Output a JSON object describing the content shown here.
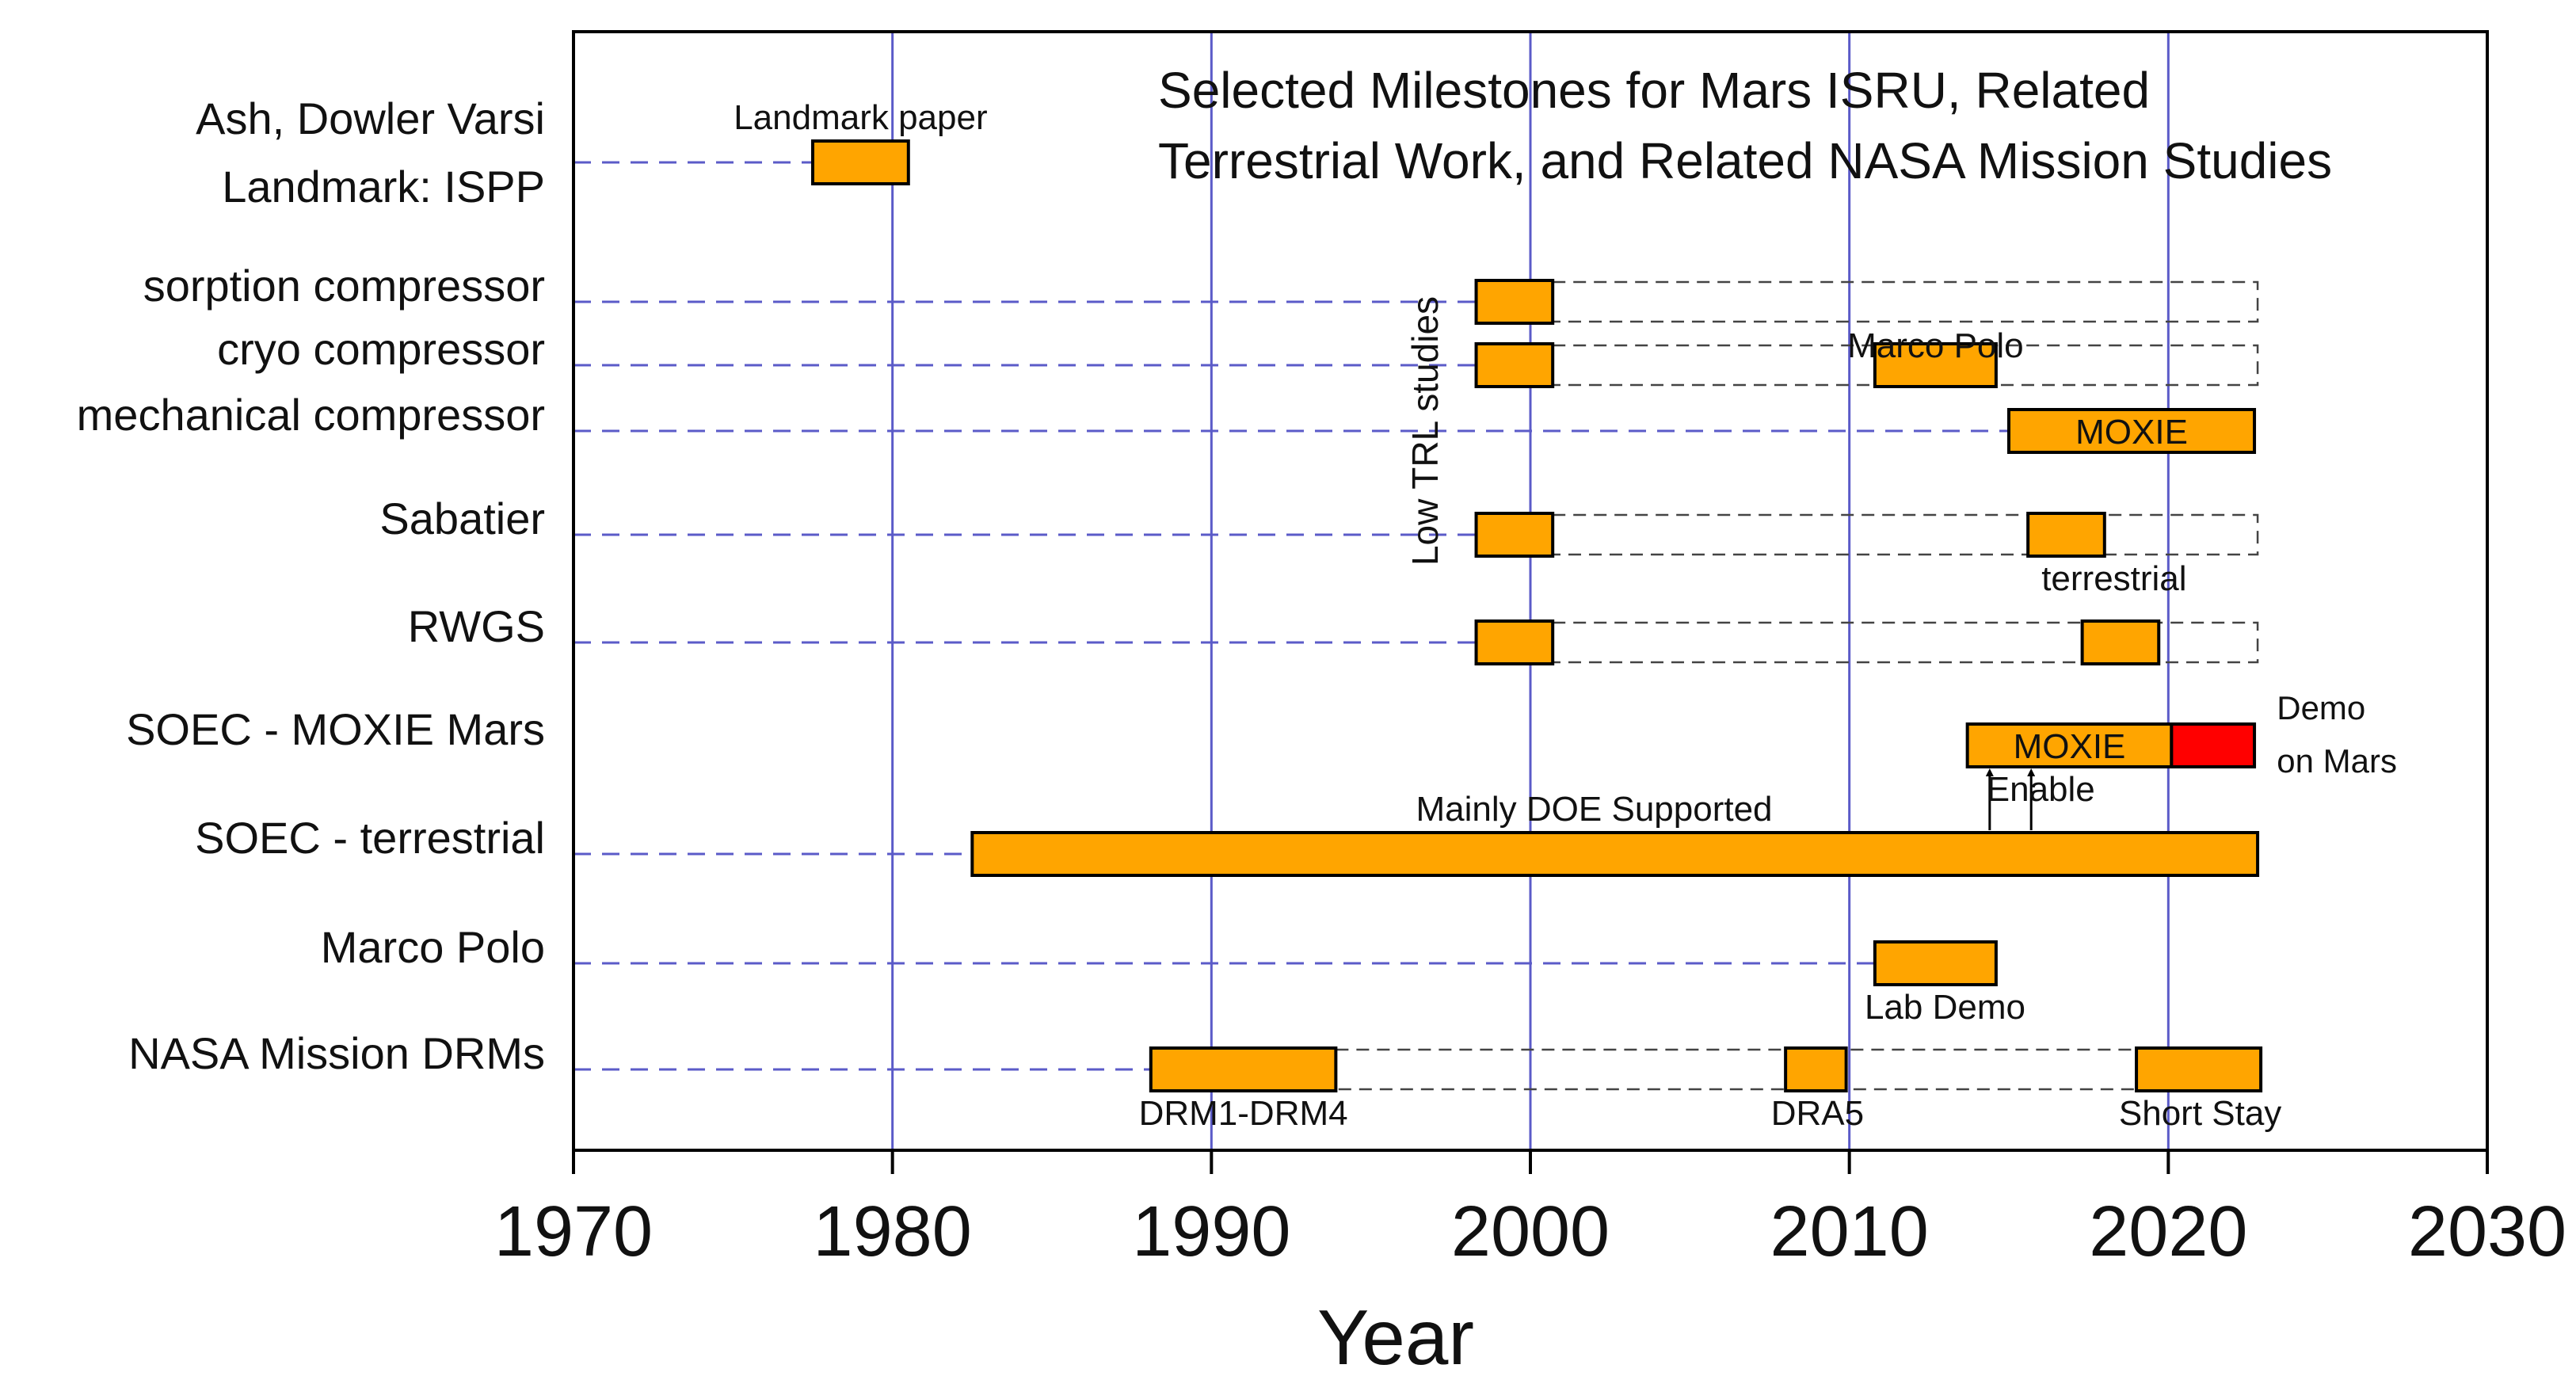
{
  "chart_data": {
    "type": "timeline",
    "title_lines": [
      "Selected Milestones for Mars ISRU, Related",
      "Terrestrial Work, and Related NASA Mission Studies"
    ],
    "xlabel": "Year",
    "xlim": [
      1970,
      2030
    ],
    "xticks": [
      1970,
      1980,
      1990,
      2000,
      2010,
      2020,
      2030
    ],
    "vertical_gridlines": [
      1980,
      1990,
      2000,
      2010,
      2020
    ],
    "rows": [
      {
        "id": "ash",
        "label_lines": [
          "Ash, Dowler Varsi",
          "Landmark: ISPP"
        ]
      },
      {
        "id": "sorption",
        "label_lines": [
          "sorption compressor"
        ]
      },
      {
        "id": "cryo",
        "label_lines": [
          "cryo compressor"
        ]
      },
      {
        "id": "mechanical",
        "label_lines": [
          "mechanical compressor"
        ]
      },
      {
        "id": "sabatier",
        "label_lines": [
          "Sabatier"
        ]
      },
      {
        "id": "rwgs",
        "label_lines": [
          "RWGS"
        ]
      },
      {
        "id": "soec_mars",
        "label_lines": [
          "SOEC - MOXIE Mars"
        ]
      },
      {
        "id": "soec_terr",
        "label_lines": [
          "SOEC - terrestrial"
        ]
      },
      {
        "id": "marco",
        "label_lines": [
          "Marco Polo"
        ]
      },
      {
        "id": "drm",
        "label_lines": [
          "NASA Mission DRMs"
        ]
      }
    ],
    "leader_lines": [
      {
        "row": "ash",
        "to": 1977.5
      },
      {
        "row": "sorption",
        "to": 1998.3
      },
      {
        "row": "cryo",
        "to": 1998.3
      },
      {
        "row": "mechanical",
        "to": 2015.0
      },
      {
        "row": "sabatier",
        "to": 1998.3
      },
      {
        "row": "rwgs",
        "to": 1998.3
      },
      {
        "row": "soec_terr",
        "to": 1982.5
      },
      {
        "row": "marco",
        "to": 2010.8
      },
      {
        "row": "drm",
        "to": 1988.1
      }
    ],
    "bars": [
      {
        "row": "ash",
        "start": 1977.5,
        "end": 1980.5,
        "color": "#ffa500"
      },
      {
        "row": "sorption",
        "start": 1998.3,
        "end": 2000.7,
        "color": "#ffa500"
      },
      {
        "row": "cryo",
        "start": 1998.3,
        "end": 2000.7,
        "color": "#ffa500"
      },
      {
        "row": "cryo",
        "start": 2010.8,
        "end": 2014.6,
        "color": "#ffa500"
      },
      {
        "row": "mechanical",
        "start": 2015.0,
        "end": 2022.7,
        "color": "#ffa500",
        "text": "MOXIE"
      },
      {
        "row": "sabatier",
        "start": 1998.3,
        "end": 2000.7,
        "color": "#ffa500"
      },
      {
        "row": "sabatier",
        "start": 2015.6,
        "end": 2018.0,
        "color": "#ffa500"
      },
      {
        "row": "rwgs",
        "start": 1998.3,
        "end": 2000.7,
        "color": "#ffa500"
      },
      {
        "row": "rwgs",
        "start": 2017.3,
        "end": 2019.7,
        "color": "#ffa500"
      },
      {
        "row": "soec_mars",
        "start": 2013.7,
        "end": 2020.1,
        "color": "#ffa500",
        "text": "MOXIE"
      },
      {
        "row": "soec_mars",
        "start": 2020.1,
        "end": 2022.7,
        "color": "#ff0000"
      },
      {
        "row": "soec_terr",
        "start": 1982.5,
        "end": 2022.8,
        "color": "#ffa500"
      },
      {
        "row": "marco",
        "start": 2010.8,
        "end": 2014.6,
        "color": "#ffa500"
      },
      {
        "row": "drm",
        "start": 1988.1,
        "end": 1993.9,
        "color": "#ffa500"
      },
      {
        "row": "drm",
        "start": 2008.0,
        "end": 2009.9,
        "color": "#ffa500"
      },
      {
        "row": "drm",
        "start": 2019.0,
        "end": 2022.9,
        "color": "#ffa500"
      }
    ],
    "dashed_spans": [
      {
        "row": "sorption",
        "start": 2000.7,
        "end": 2022.8
      },
      {
        "row": "cryo",
        "start": 2000.7,
        "end": 2022.8
      },
      {
        "row": "sabatier",
        "start": 2000.7,
        "end": 2022.8
      },
      {
        "row": "rwgs",
        "start": 2000.7,
        "end": 2022.8
      },
      {
        "row": "drm",
        "start": 1993.9,
        "end": 2022.9
      }
    ],
    "arrows": [
      {
        "year": 2014.4,
        "from_row": "soec_terr",
        "to_row": "soec_mars"
      },
      {
        "year": 2015.7,
        "from_row": "soec_terr",
        "to_row": "soec_mars"
      }
    ],
    "annotations": [
      {
        "text": "Landmark paper",
        "year": 1979.0,
        "row": "ash",
        "pos": "above"
      },
      {
        "text": "Marco Polo",
        "year": 2012.7,
        "row": "sorption",
        "pos": "below"
      },
      {
        "text": "Low TRL studies",
        "year": 1996.7,
        "row": "mechanical",
        "pos": "vertical"
      },
      {
        "text": "terrestrial",
        "year": 2018.3,
        "row": "sabatier",
        "pos": "below"
      },
      {
        "text": "Demo",
        "year": 2023.4,
        "row": "soec_mars",
        "pos": "upper-right"
      },
      {
        "text": "on Mars",
        "year": 2023.4,
        "row": "soec_mars",
        "pos": "lower-right"
      },
      {
        "text": "Enable",
        "year": 2016.0,
        "row": "soec_mars",
        "pos": "below"
      },
      {
        "text": "Mainly DOE Supported",
        "year": 2002.0,
        "row": "soec_terr",
        "pos": "above"
      },
      {
        "text": "Lab Demo",
        "year": 2013.0,
        "row": "marco",
        "pos": "below"
      },
      {
        "text": "DRM1-DRM4",
        "year": 1991.0,
        "row": "drm",
        "pos": "below"
      },
      {
        "text": "DRA5",
        "year": 2009.0,
        "row": "drm",
        "pos": "below"
      },
      {
        "text": "Short Stay",
        "year": 2021.0,
        "row": "drm",
        "pos": "below"
      }
    ]
  }
}
